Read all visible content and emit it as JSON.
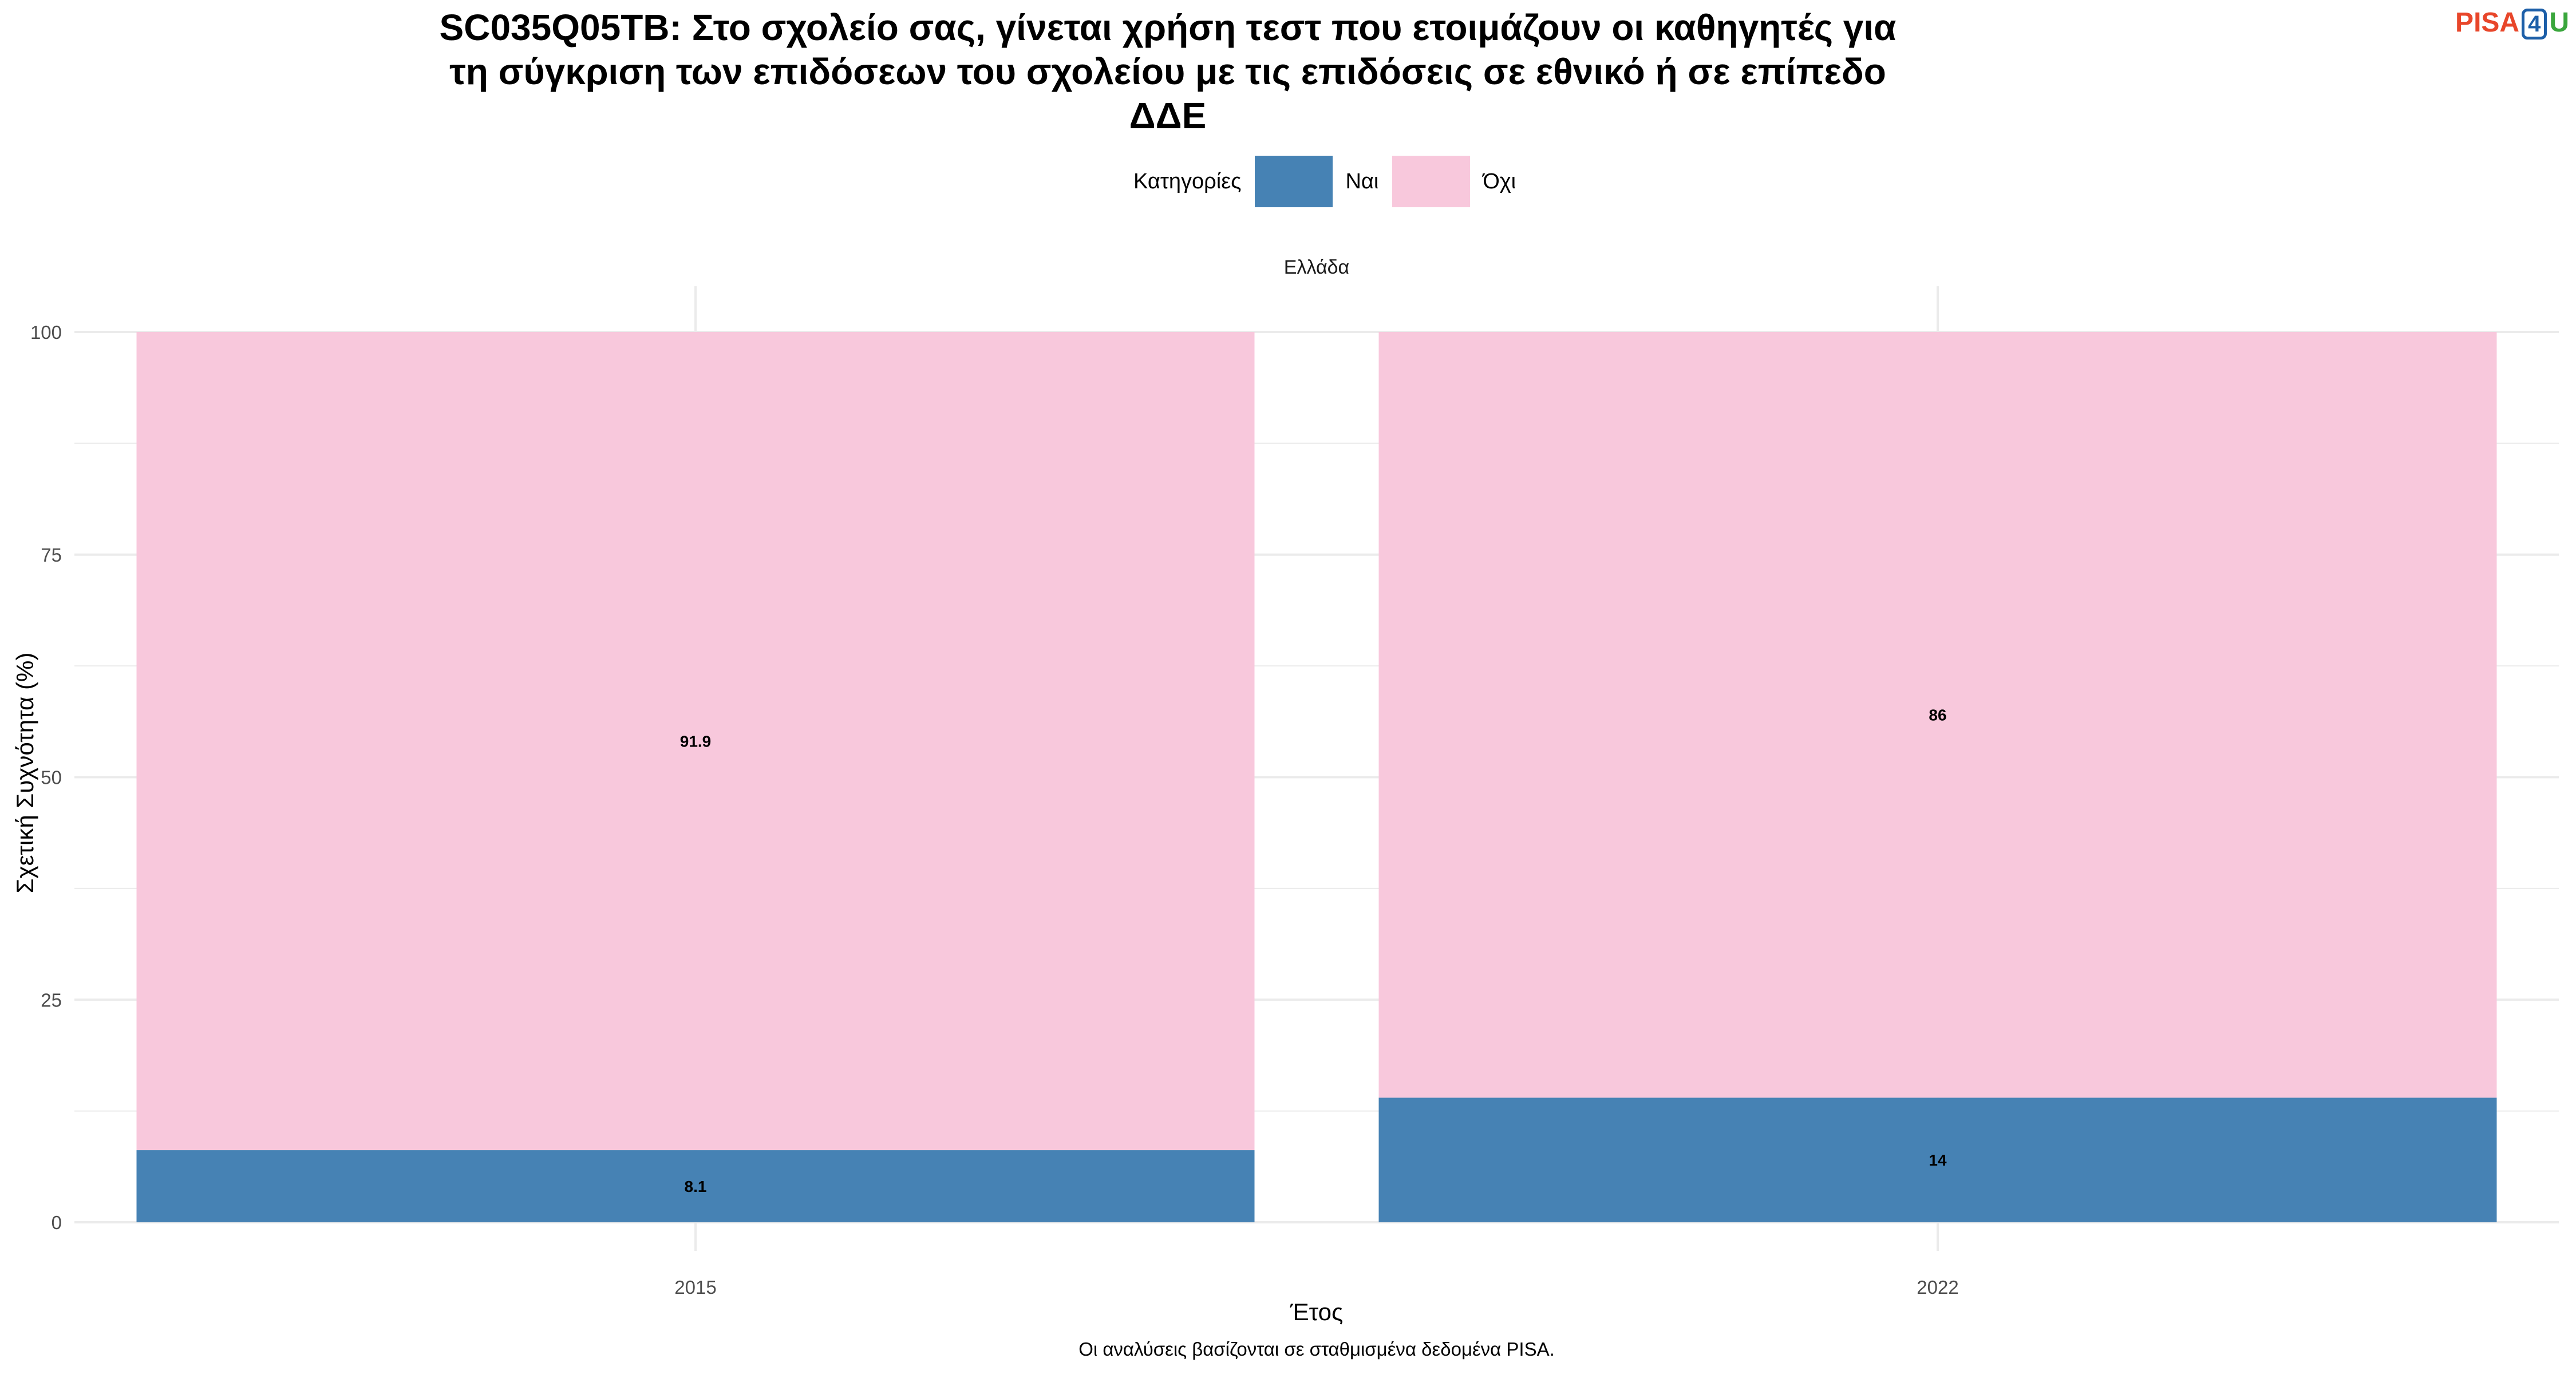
{
  "header": {
    "title": "SC035Q05TB: Στο σχολείο σας, γίνεται χρήση τεστ που ετοιμάζουν οι καθηγητές για\nτη σύγκριση των επιδόσεων του σχολείου με τις επιδόσεις σε εθνικό ή σε επίπεδο\nΔΔΕ",
    "logo": {
      "part1": "PISA",
      "part2": "4",
      "part3": "U"
    }
  },
  "legend": {
    "title": "Κατηγορίες",
    "position": "top"
  },
  "caption": "Οι αναλύσεις βασίζονται σε σταθμισμένα δεδομένα PISA.",
  "colors": {
    "nai": "#4682b4",
    "oxi": "#f8c8dc",
    "grid": "#ebebeb"
  },
  "chart_data": {
    "type": "bar",
    "stacked": true,
    "facet": "Ελλάδα",
    "categories": [
      "2015",
      "2022"
    ],
    "series": [
      {
        "name": "Ναι",
        "values": [
          8.1,
          14
        ],
        "labels": [
          "8.1",
          "14"
        ],
        "color": "#4682b4"
      },
      {
        "name": "Όχι",
        "values": [
          91.9,
          86
        ],
        "labels": [
          "91.9",
          "86"
        ],
        "color": "#f8c8dc"
      }
    ],
    "xlabel": "Έτος",
    "ylabel": "Σχετική Συχνότητα (%)",
    "ylim": [
      0,
      100
    ],
    "yticks": [
      0,
      25,
      50,
      75,
      100
    ],
    "ytick_labels": [
      "0",
      "25",
      "50",
      "75",
      "100"
    ],
    "grid": true
  }
}
